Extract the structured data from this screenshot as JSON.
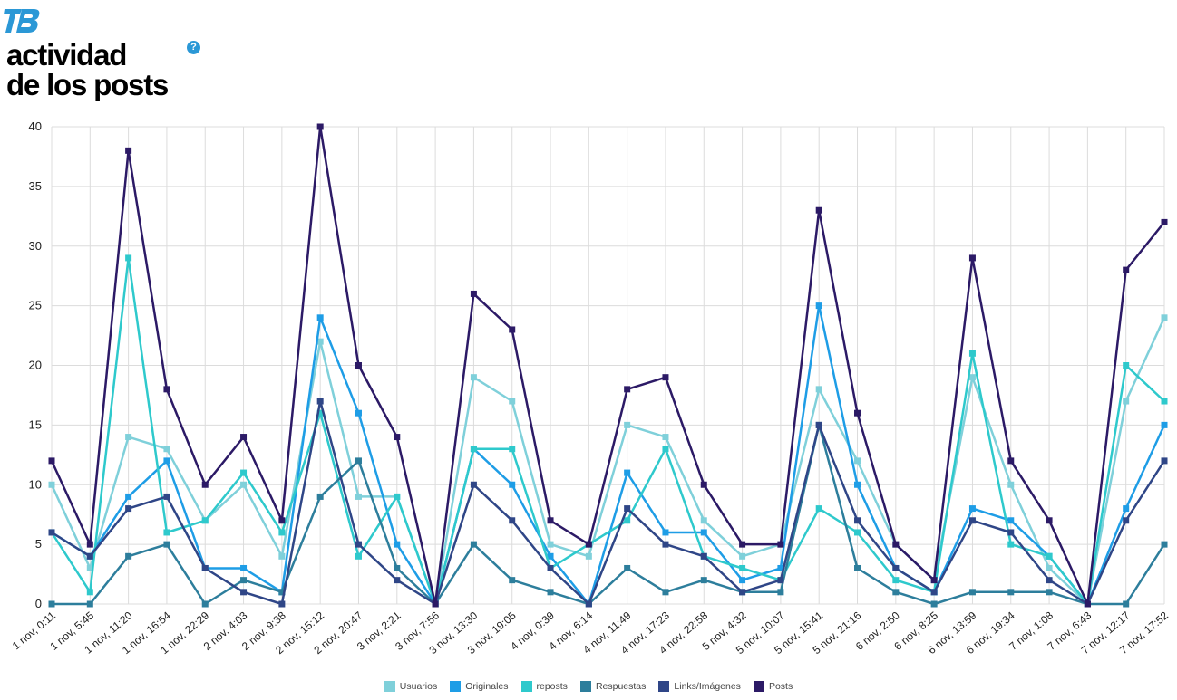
{
  "header": {
    "logo_text": "TB",
    "title_line1": "actividad",
    "title_line2": "de los posts",
    "help_label": "?"
  },
  "chart_data": {
    "type": "line",
    "title": "actividad de los posts",
    "ylim": [
      0,
      40
    ],
    "yticks": [
      0,
      5,
      10,
      15,
      20,
      25,
      30,
      35,
      40
    ],
    "grid": true,
    "legend_position": "bottom-center",
    "categories": [
      "1 nov, 0:11",
      "1 nov, 5:45",
      "1 nov, 11:20",
      "1 nov, 16:54",
      "1 nov, 22:29",
      "2 nov, 4:03",
      "2 nov, 9:38",
      "2 nov, 15:12",
      "2 nov, 20:47",
      "3 nov, 2:21",
      "3 nov, 7:56",
      "3 nov, 13:30",
      "3 nov, 19:05",
      "4 nov, 0:39",
      "4 nov, 6:14",
      "4 nov, 11:49",
      "4 nov, 17:23",
      "4 nov, 22:58",
      "5 nov, 4:32",
      "5 nov, 10:07",
      "5 nov, 15:41",
      "5 nov, 21:16",
      "6 nov, 2:50",
      "6 nov, 8:25",
      "6 nov, 13:59",
      "6 nov, 19:34",
      "7 nov, 1:08",
      "7 nov, 6:43",
      "7 nov, 12:17",
      "7 nov, 17:52"
    ],
    "series": [
      {
        "name": "Usuarios",
        "color": "#7fd0da",
        "values": [
          10,
          3,
          14,
          13,
          7,
          10,
          4,
          22,
          9,
          9,
          0,
          19,
          17,
          5,
          4,
          15,
          14,
          7,
          4,
          5,
          18,
          12,
          5,
          2,
          19,
          10,
          3,
          0,
          17,
          24
        ]
      },
      {
        "name": "Originales",
        "color": "#1e9de6",
        "values": [
          6,
          4,
          9,
          12,
          3,
          3,
          1,
          24,
          16,
          5,
          0,
          13,
          10,
          4,
          0,
          11,
          6,
          6,
          2,
          3,
          25,
          10,
          3,
          1,
          8,
          7,
          4,
          0,
          8,
          15
        ]
      },
      {
        "name": "reposts",
        "color": "#2ec9cc",
        "values": [
          6,
          1,
          29,
          6,
          7,
          11,
          6,
          16,
          4,
          9,
          0,
          13,
          13,
          3,
          5,
          7,
          13,
          4,
          3,
          2,
          8,
          6,
          2,
          1,
          21,
          5,
          4,
          0,
          20,
          17
        ]
      },
      {
        "name": "Respuestas",
        "color": "#2d7e9c",
        "values": [
          0,
          0,
          4,
          5,
          0,
          2,
          1,
          9,
          12,
          3,
          0,
          5,
          2,
          1,
          0,
          3,
          1,
          2,
          1,
          1,
          15,
          3,
          1,
          0,
          1,
          1,
          1,
          0,
          0,
          5
        ]
      },
      {
        "name": "Links/Imágenes",
        "color": "#2f4687",
        "values": [
          6,
          4,
          8,
          9,
          3,
          1,
          0,
          17,
          5,
          2,
          0,
          10,
          7,
          3,
          0,
          8,
          5,
          4,
          1,
          2,
          15,
          7,
          3,
          1,
          7,
          6,
          2,
          0,
          7,
          12
        ]
      },
      {
        "name": "Posts",
        "color": "#2c1a66",
        "values": [
          12,
          5,
          38,
          18,
          10,
          14,
          7,
          40,
          20,
          14,
          0,
          26,
          23,
          7,
          5,
          18,
          19,
          10,
          5,
          5,
          33,
          16,
          5,
          2,
          29,
          12,
          7,
          0,
          28,
          32
        ]
      }
    ]
  }
}
